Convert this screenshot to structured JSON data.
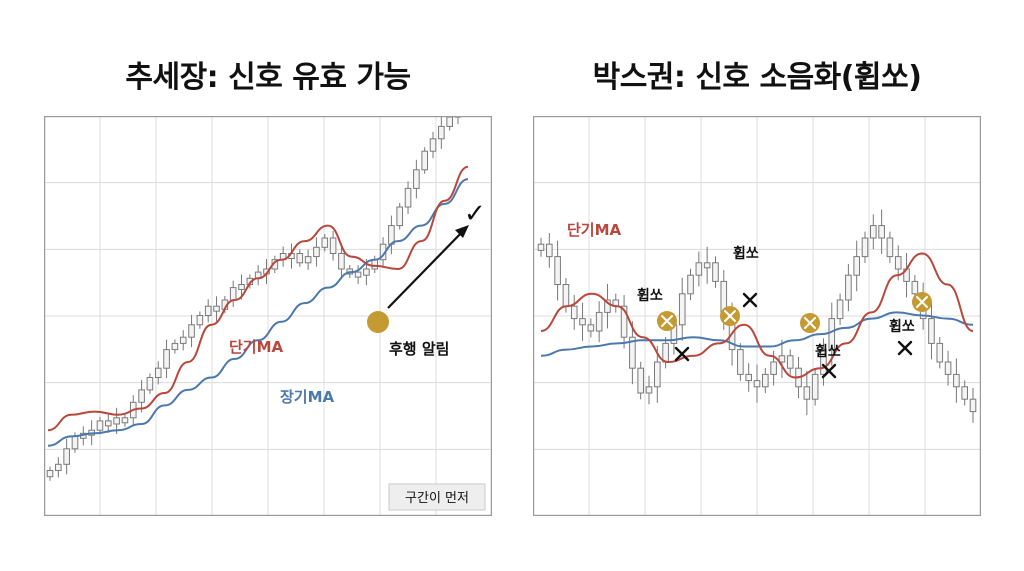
{
  "left": {
    "title": "추세장: 신호 유효 가능",
    "short_label": "단기MA",
    "long_label": "장기MA",
    "signal_label": "후행 알림",
    "check_mark": "✓",
    "badge": "구간이 먼저"
  },
  "right": {
    "title": "박스권: 신호 소음화(휩쏘)",
    "short_label": "단기MA",
    "whipsaw_label": "휩쏘",
    "x_mark": "×"
  },
  "colors": {
    "short_ma": "#b8473c",
    "long_ma": "#4b78ad",
    "signal_dot": "#c49a32",
    "candle_body": "#f4f4f4"
  },
  "chart_data": [
    {
      "type": "line",
      "title": "추세장: 신호 유효 가능",
      "grid": true,
      "ylim": [
        0,
        100
      ],
      "series": [
        {
          "name": "단기MA",
          "values": [
            18,
            23,
            24,
            23,
            25,
            30,
            40,
            52,
            60,
            67,
            73,
            79,
            84,
            74,
            71,
            70,
            79,
            92,
            103
          ]
        },
        {
          "name": "장기MA",
          "values": [
            13,
            16,
            17,
            18,
            20,
            26,
            31,
            35,
            41,
            47,
            53,
            59,
            64,
            69,
            73,
            79,
            84,
            91,
            99
          ]
        }
      ],
      "candles": [
        5,
        7,
        12,
        16,
        17,
        18,
        21,
        20,
        22,
        22,
        27,
        31,
        35,
        38,
        44,
        46,
        48,
        52,
        55,
        58,
        57,
        60,
        64,
        65,
        67,
        69,
        70,
        73,
        75,
        75,
        72,
        74,
        77,
        80,
        75,
        70,
        69,
        68,
        70,
        73,
        78,
        84,
        90,
        96,
        102,
        108,
        112,
        116,
        119,
        124
      ],
      "annotations": [
        "후행 알림",
        "구간이 먼저"
      ]
    },
    {
      "type": "line",
      "title": "박스권: 신호 소음화(휩쏘)",
      "grid": true,
      "ylim": [
        0,
        100
      ],
      "series": [
        {
          "name": "단기MA",
          "values": [
            50,
            58,
            62,
            58,
            48,
            40,
            42,
            46,
            52,
            42,
            35,
            38,
            46,
            56,
            68,
            75,
            65,
            50
          ]
        },
        {
          "name": "장기MA",
          "values": [
            42,
            44,
            45,
            46,
            47,
            47,
            48,
            47,
            45,
            45,
            47,
            49,
            51,
            54,
            56,
            55,
            54,
            52
          ]
        }
      ],
      "candles": [
        78,
        74,
        65,
        58,
        54,
        52,
        50,
        56,
        60,
        58,
        48,
        38,
        30,
        32,
        40,
        46,
        52,
        62,
        68,
        72,
        72,
        66,
        54,
        44,
        36,
        34,
        32,
        36,
        40,
        42,
        38,
        32,
        28,
        36,
        44,
        54,
        60,
        68,
        74,
        80,
        84,
        80,
        74,
        70,
        66,
        62,
        54,
        46,
        40,
        36,
        32,
        28,
        24
      ],
      "annotations": [
        "휩쏘",
        "휩쏘",
        "휩쏘",
        "휩쏘"
      ]
    }
  ]
}
